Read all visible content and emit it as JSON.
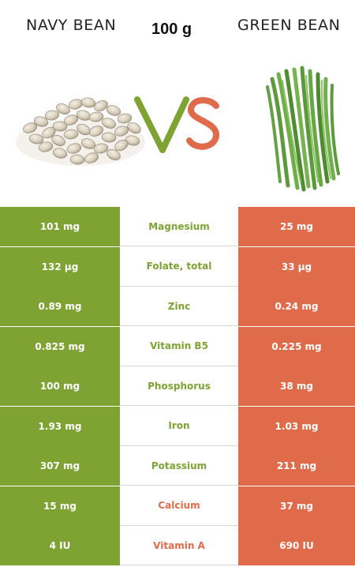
{
  "header": {
    "left_food": "NAVY BEAN",
    "right_food": "GREEN BEAN",
    "amount": "100 g",
    "vs_letters": [
      "V",
      "S"
    ]
  },
  "colors": {
    "left": "#7ea332",
    "right": "#e06b4a",
    "mid_bg": "#ffffff"
  },
  "icons": {
    "left_image": "navy-bean-pile-image",
    "right_image": "green-bean-bundle-image"
  },
  "rows": [
    {
      "nutrient": "Magnesium",
      "left": "101 mg",
      "right": "25 mg",
      "winner": "left"
    },
    {
      "nutrient": "Folate, total",
      "left": "132 µg",
      "right": "33 µg",
      "winner": "left"
    },
    {
      "nutrient": "Zinc",
      "left": "0.89 mg",
      "right": "0.24 mg",
      "winner": "left"
    },
    {
      "nutrient": "Vitamin B5",
      "left": "0.825 mg",
      "right": "0.225 mg",
      "winner": "left"
    },
    {
      "nutrient": "Phosphorus",
      "left": "100 mg",
      "right": "38 mg",
      "winner": "left"
    },
    {
      "nutrient": "Iron",
      "left": "1.93 mg",
      "right": "1.03 mg",
      "winner": "left"
    },
    {
      "nutrient": "Potassium",
      "left": "307 mg",
      "right": "211 mg",
      "winner": "left"
    },
    {
      "nutrient": "Calcium",
      "left": "15 mg",
      "right": "37 mg",
      "winner": "right"
    },
    {
      "nutrient": "Vitamin A",
      "left": "4 IU",
      "right": "690 IU",
      "winner": "right"
    }
  ]
}
